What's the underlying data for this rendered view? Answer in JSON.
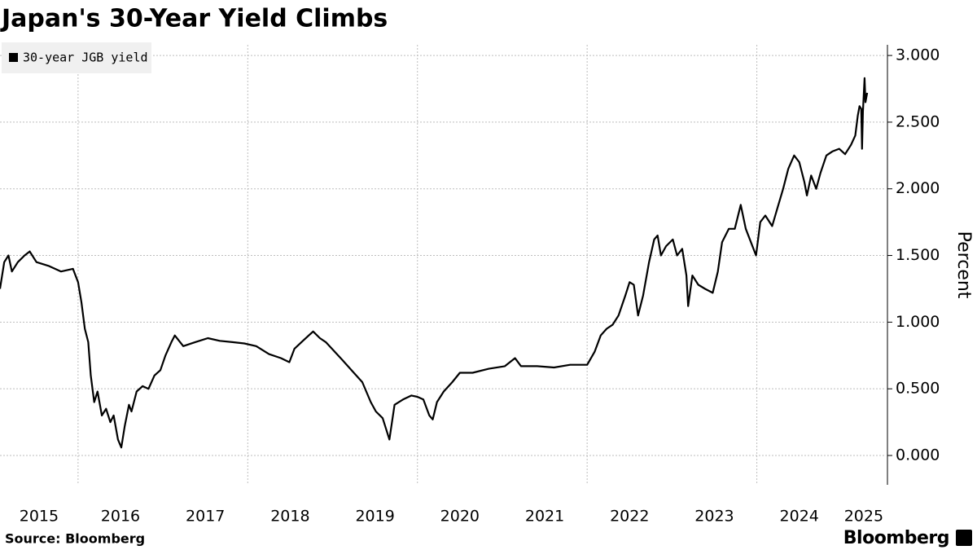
{
  "chart_data": {
    "type": "line",
    "title": "Japan's 30-Year Yield Climbs",
    "y_label": "Percent",
    "source": "Source: Bloomberg",
    "brand": "Bloomberg",
    "x": [
      2015.08,
      2015.13,
      2015.18,
      2015.22,
      2015.29,
      2015.37,
      2015.43,
      2015.51,
      2015.66,
      2015.8,
      2015.94,
      2016.0,
      2016.04,
      2016.08,
      2016.12,
      2016.15,
      2016.19,
      2016.23,
      2016.28,
      2016.33,
      2016.38,
      2016.42,
      2016.47,
      2016.51,
      2016.55,
      2016.6,
      2016.63,
      2016.69,
      2016.76,
      2016.83,
      2016.9,
      2016.97,
      2017.03,
      2017.1,
      2017.14,
      2017.24,
      2017.38,
      2017.53,
      2017.67,
      2017.82,
      2017.96,
      2018.1,
      2018.25,
      2018.39,
      2018.49,
      2018.55,
      2018.65,
      2018.77,
      2018.85,
      2018.92,
      2019.11,
      2019.25,
      2019.35,
      2019.45,
      2019.51,
      2019.59,
      2019.67,
      2019.73,
      2019.83,
      2019.93,
      2020.0,
      2020.07,
      2020.14,
      2020.18,
      2020.23,
      2020.31,
      2020.41,
      2020.5,
      2020.65,
      2020.84,
      2021.03,
      2021.15,
      2021.22,
      2021.41,
      2021.61,
      2021.8,
      2021.94,
      2022.0,
      2022.09,
      2022.16,
      2022.23,
      2022.3,
      2022.37,
      2022.45,
      2022.5,
      2022.55,
      2022.6,
      2022.66,
      2022.73,
      2022.79,
      2022.83,
      2022.87,
      2022.93,
      2023.01,
      2023.06,
      2023.12,
      2023.17,
      2023.19,
      2023.24,
      2023.31,
      2023.39,
      2023.48,
      2023.54,
      2023.59,
      2023.67,
      2023.74,
      2023.81,
      2023.87,
      2023.93,
      2023.99,
      2024.04,
      2024.1,
      2024.18,
      2024.24,
      2024.31,
      2024.37,
      2024.44,
      2024.5,
      2024.56,
      2024.59,
      2024.64,
      2024.7,
      2024.75,
      2024.82,
      2024.89,
      2024.97,
      2025.04,
      2025.11,
      2025.16,
      2025.19,
      2025.21,
      2025.23,
      2025.24,
      2025.25,
      2025.27,
      2025.28,
      2025.3
    ],
    "series": [
      {
        "name": "30-year JGB yield",
        "color": "#000000",
        "values": [
          1.25,
          1.45,
          1.5,
          1.38,
          1.45,
          1.5,
          1.53,
          1.45,
          1.42,
          1.38,
          1.4,
          1.3,
          1.15,
          0.95,
          0.85,
          0.6,
          0.4,
          0.48,
          0.3,
          0.35,
          0.25,
          0.3,
          0.12,
          0.06,
          0.22,
          0.38,
          0.33,
          0.48,
          0.52,
          0.5,
          0.6,
          0.64,
          0.75,
          0.85,
          0.9,
          0.82,
          0.85,
          0.88,
          0.86,
          0.85,
          0.84,
          0.82,
          0.76,
          0.73,
          0.7,
          0.8,
          0.86,
          0.93,
          0.88,
          0.85,
          0.72,
          0.62,
          0.55,
          0.4,
          0.33,
          0.28,
          0.12,
          0.38,
          0.42,
          0.45,
          0.44,
          0.42,
          0.3,
          0.27,
          0.4,
          0.48,
          0.55,
          0.62,
          0.62,
          0.65,
          0.67,
          0.73,
          0.67,
          0.67,
          0.66,
          0.68,
          0.68,
          0.68,
          0.78,
          0.9,
          0.95,
          0.98,
          1.05,
          1.2,
          1.3,
          1.28,
          1.05,
          1.2,
          1.45,
          1.62,
          1.65,
          1.5,
          1.57,
          1.62,
          1.5,
          1.55,
          1.35,
          1.12,
          1.35,
          1.28,
          1.25,
          1.22,
          1.38,
          1.6,
          1.7,
          1.7,
          1.88,
          1.7,
          1.6,
          1.5,
          1.75,
          1.8,
          1.72,
          1.85,
          2.0,
          2.15,
          2.25,
          2.2,
          2.05,
          1.95,
          2.1,
          2.0,
          2.12,
          2.25,
          2.28,
          2.3,
          2.26,
          2.33,
          2.4,
          2.55,
          2.62,
          2.6,
          2.3,
          2.58,
          2.83,
          2.65,
          2.72
        ]
      }
    ],
    "xlim": [
      2015.08,
      2025.52
    ],
    "xticks": [
      2015,
      2016,
      2017,
      2018,
      2019,
      2020,
      2021,
      2022,
      2023,
      2024,
      2025
    ],
    "ylim": [
      -0.22,
      3.08
    ],
    "yticks": [
      {
        "value": 0,
        "label": "0.000"
      },
      {
        "value": 0.5,
        "label": "0.500"
      },
      {
        "value": 1,
        "label": "1.000"
      },
      {
        "value": 1.5,
        "label": "1.500"
      },
      {
        "value": 2,
        "label": "2.000"
      },
      {
        "value": 2.5,
        "label": "2.500"
      },
      {
        "value": 3,
        "label": "3.000"
      }
    ],
    "grid": true,
    "legend": "top-left"
  }
}
